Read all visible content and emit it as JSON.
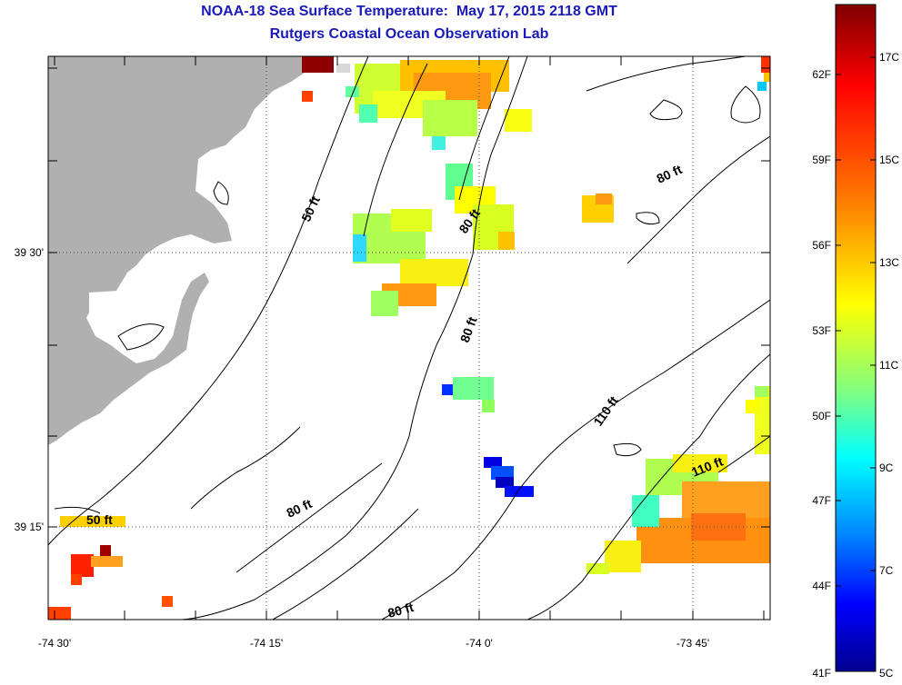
{
  "title": "NOAA-18 Sea Surface Temperature:  May 17, 2015 2118 GMT",
  "subtitle": "Rutgers Coastal Ocean Observation Lab",
  "axes": {
    "x_ticks": [
      "-74 30'",
      "-74 15'",
      "-74 0'",
      "-73 45'"
    ],
    "y_ticks": [
      "39 30'",
      "39 15'"
    ]
  },
  "contour_labels": [
    {
      "id": "c50a",
      "text": "50 ft"
    },
    {
      "id": "c50b",
      "text": "50 ft"
    },
    {
      "id": "c80a",
      "text": "80 ft"
    },
    {
      "id": "c80b",
      "text": "80 ft"
    },
    {
      "id": "c80c",
      "text": "80 ft"
    },
    {
      "id": "c80d",
      "text": "80 ft"
    },
    {
      "id": "c80e",
      "text": "80 ft"
    },
    {
      "id": "c110a",
      "text": "110 ft"
    },
    {
      "id": "c110b",
      "text": "110 ft"
    }
  ],
  "colorbar": {
    "fahrenheit_labels": [
      "62F",
      "59F",
      "56F",
      "53F",
      "50F",
      "47F",
      "44F",
      "41F"
    ],
    "celsius_labels": [
      "17C",
      "15C",
      "13C",
      "11C",
      "9C",
      "7C",
      "5C"
    ],
    "gradient_colors": [
      "#7f0000",
      "#ff0000",
      "#ff8000",
      "#ffff00",
      "#80ff80",
      "#00ffff",
      "#0080ff",
      "#0000ff",
      "#00008f"
    ]
  },
  "colors": {
    "land": "#b0b0b0",
    "title": "#1a1ab8"
  }
}
